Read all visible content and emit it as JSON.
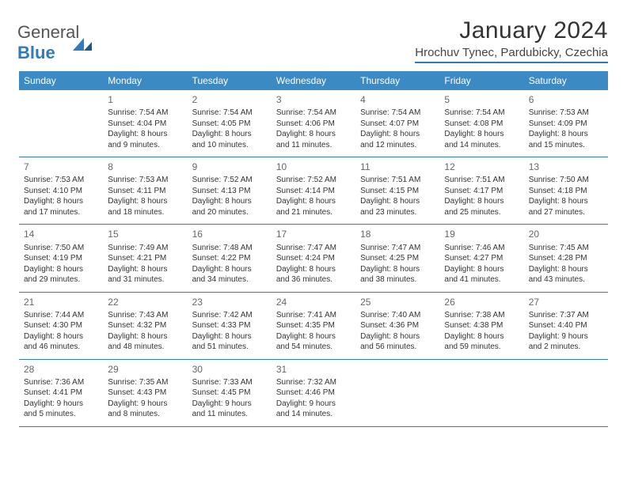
{
  "logo": {
    "textA": "General",
    "textB": "Blue"
  },
  "header": {
    "title": "January 2024",
    "location": "Hrochuv Tynec, Pardubicky, Czechia"
  },
  "colors": {
    "header_bg": "#3b8ac4",
    "header_text": "#ffffff",
    "rule": "#2f7bbf",
    "text": "#333333",
    "daynum": "#666666"
  },
  "dayHeaders": [
    "Sunday",
    "Monday",
    "Tuesday",
    "Wednesday",
    "Thursday",
    "Friday",
    "Saturday"
  ],
  "weeks": [
    [
      null,
      {
        "n": "1",
        "sr": "7:54 AM",
        "ss": "4:04 PM",
        "dl": "8 hours and 9 minutes."
      },
      {
        "n": "2",
        "sr": "7:54 AM",
        "ss": "4:05 PM",
        "dl": "8 hours and 10 minutes."
      },
      {
        "n": "3",
        "sr": "7:54 AM",
        "ss": "4:06 PM",
        "dl": "8 hours and 11 minutes."
      },
      {
        "n": "4",
        "sr": "7:54 AM",
        "ss": "4:07 PM",
        "dl": "8 hours and 12 minutes."
      },
      {
        "n": "5",
        "sr": "7:54 AM",
        "ss": "4:08 PM",
        "dl": "8 hours and 14 minutes."
      },
      {
        "n": "6",
        "sr": "7:53 AM",
        "ss": "4:09 PM",
        "dl": "8 hours and 15 minutes."
      }
    ],
    [
      {
        "n": "7",
        "sr": "7:53 AM",
        "ss": "4:10 PM",
        "dl": "8 hours and 17 minutes."
      },
      {
        "n": "8",
        "sr": "7:53 AM",
        "ss": "4:11 PM",
        "dl": "8 hours and 18 minutes."
      },
      {
        "n": "9",
        "sr": "7:52 AM",
        "ss": "4:13 PM",
        "dl": "8 hours and 20 minutes."
      },
      {
        "n": "10",
        "sr": "7:52 AM",
        "ss": "4:14 PM",
        "dl": "8 hours and 21 minutes."
      },
      {
        "n": "11",
        "sr": "7:51 AM",
        "ss": "4:15 PM",
        "dl": "8 hours and 23 minutes."
      },
      {
        "n": "12",
        "sr": "7:51 AM",
        "ss": "4:17 PM",
        "dl": "8 hours and 25 minutes."
      },
      {
        "n": "13",
        "sr": "7:50 AM",
        "ss": "4:18 PM",
        "dl": "8 hours and 27 minutes."
      }
    ],
    [
      {
        "n": "14",
        "sr": "7:50 AM",
        "ss": "4:19 PM",
        "dl": "8 hours and 29 minutes."
      },
      {
        "n": "15",
        "sr": "7:49 AM",
        "ss": "4:21 PM",
        "dl": "8 hours and 31 minutes."
      },
      {
        "n": "16",
        "sr": "7:48 AM",
        "ss": "4:22 PM",
        "dl": "8 hours and 34 minutes."
      },
      {
        "n": "17",
        "sr": "7:47 AM",
        "ss": "4:24 PM",
        "dl": "8 hours and 36 minutes."
      },
      {
        "n": "18",
        "sr": "7:47 AM",
        "ss": "4:25 PM",
        "dl": "8 hours and 38 minutes."
      },
      {
        "n": "19",
        "sr": "7:46 AM",
        "ss": "4:27 PM",
        "dl": "8 hours and 41 minutes."
      },
      {
        "n": "20",
        "sr": "7:45 AM",
        "ss": "4:28 PM",
        "dl": "8 hours and 43 minutes."
      }
    ],
    [
      {
        "n": "21",
        "sr": "7:44 AM",
        "ss": "4:30 PM",
        "dl": "8 hours and 46 minutes."
      },
      {
        "n": "22",
        "sr": "7:43 AM",
        "ss": "4:32 PM",
        "dl": "8 hours and 48 minutes."
      },
      {
        "n": "23",
        "sr": "7:42 AM",
        "ss": "4:33 PM",
        "dl": "8 hours and 51 minutes."
      },
      {
        "n": "24",
        "sr": "7:41 AM",
        "ss": "4:35 PM",
        "dl": "8 hours and 54 minutes."
      },
      {
        "n": "25",
        "sr": "7:40 AM",
        "ss": "4:36 PM",
        "dl": "8 hours and 56 minutes."
      },
      {
        "n": "26",
        "sr": "7:38 AM",
        "ss": "4:38 PM",
        "dl": "8 hours and 59 minutes."
      },
      {
        "n": "27",
        "sr": "7:37 AM",
        "ss": "4:40 PM",
        "dl": "9 hours and 2 minutes."
      }
    ],
    [
      {
        "n": "28",
        "sr": "7:36 AM",
        "ss": "4:41 PM",
        "dl": "9 hours and 5 minutes."
      },
      {
        "n": "29",
        "sr": "7:35 AM",
        "ss": "4:43 PM",
        "dl": "9 hours and 8 minutes."
      },
      {
        "n": "30",
        "sr": "7:33 AM",
        "ss": "4:45 PM",
        "dl": "9 hours and 11 minutes."
      },
      {
        "n": "31",
        "sr": "7:32 AM",
        "ss": "4:46 PM",
        "dl": "9 hours and 14 minutes."
      },
      null,
      null,
      null
    ]
  ],
  "labels": {
    "sunrise": "Sunrise:",
    "sunset": "Sunset:",
    "daylight": "Daylight:"
  }
}
